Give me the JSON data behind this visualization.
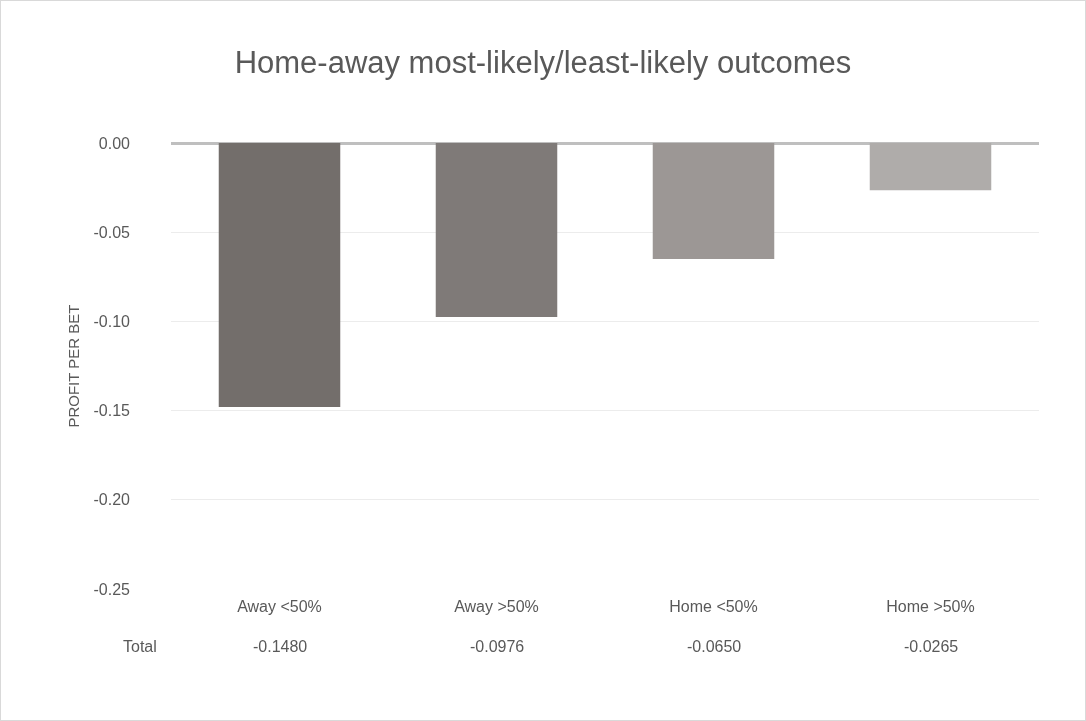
{
  "chart_data": {
    "type": "bar",
    "title": "Home-away most-likely/least-likely outcomes",
    "ylabel": "PROFIT PER BET",
    "categories": [
      "Away <50%",
      "Away >50%",
      "Home <50%",
      "Home >50%"
    ],
    "series": [
      {
        "name": "Total",
        "colors": [
          "#736e6b",
          "#7f7a78",
          "#9c9795",
          "#afacaa"
        ],
        "values": [
          -0.148,
          -0.0976,
          -0.065,
          -0.0265
        ],
        "value_labels": [
          "-0.1480",
          "-0.0976",
          "-0.0650",
          "-0.0265"
        ]
      }
    ],
    "ylim": [
      -0.25,
      0
    ],
    "yticks": [
      {
        "value": 0,
        "label": "0.00"
      },
      {
        "value": -0.05,
        "label": "-0.05"
      },
      {
        "value": -0.1,
        "label": "-0.10"
      },
      {
        "value": -0.15,
        "label": "-0.15"
      },
      {
        "value": -0.2,
        "label": "-0.20"
      },
      {
        "value": -0.25,
        "label": "-0.25"
      }
    ],
    "grid": "y",
    "legend": false
  }
}
